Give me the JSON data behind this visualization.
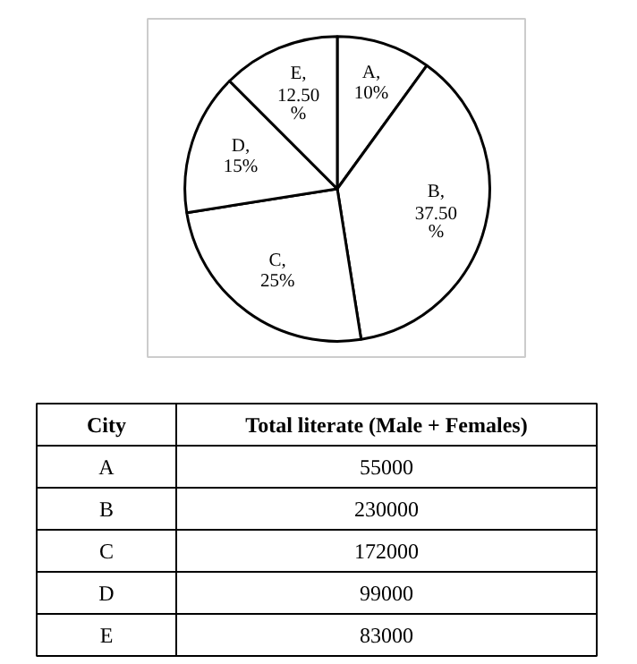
{
  "chart_data": [
    {
      "type": "pie",
      "categories": [
        null,
        null,
        null,
        null,
        null
      ],
      "values": [
        10,
        37.5,
        25,
        15,
        12.5
      ],
      "colors": [
        "#ffffff",
        "#ffffff",
        "#ffffff",
        "#ffffff",
        "#ffffff"
      ],
      "value_labels": [
        "A,\n10%",
        "B,\n37.50\n%",
        "C,\n25%",
        "D,\n15%",
        "E,\n12.50\n%"
      ]
    },
    {
      "type": "other",
      "categories": [
        "A",
        "B",
        "C",
        "D",
        "E"
      ],
      "values": [
        55000,
        230000,
        172000,
        99000,
        83000
      ],
      "data_labels": true,
      "annotations": [
        "City",
        "Total literate (Male + Females)"
      ]
    }
  ]
}
